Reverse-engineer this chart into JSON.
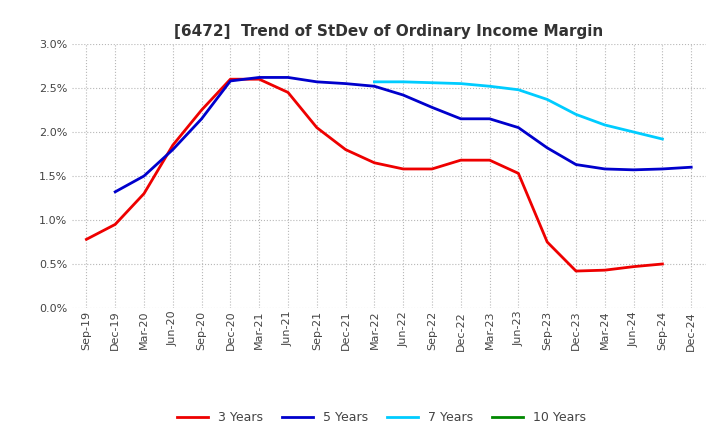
{
  "title": "[6472]  Trend of StDev of Ordinary Income Margin",
  "background_color": "#ffffff",
  "grid_color": "#b0b0b0",
  "xlabels": [
    "Sep-19",
    "Dec-19",
    "Mar-20",
    "Jun-20",
    "Sep-20",
    "Dec-20",
    "Mar-21",
    "Jun-21",
    "Sep-21",
    "Dec-21",
    "Mar-22",
    "Jun-22",
    "Sep-22",
    "Dec-22",
    "Mar-23",
    "Jun-23",
    "Sep-23",
    "Dec-23",
    "Mar-24",
    "Jun-24",
    "Sep-24",
    "Dec-24"
  ],
  "ylim": [
    0.0,
    0.03
  ],
  "yticks": [
    0.0,
    0.005,
    0.01,
    0.015,
    0.02,
    0.025,
    0.03
  ],
  "series_3y_x": [
    0,
    1,
    2,
    3,
    4,
    5,
    6,
    7,
    8,
    9,
    10,
    11,
    12,
    13,
    14,
    15,
    16,
    17,
    18,
    19,
    20
  ],
  "series_3y_y": [
    0.0078,
    0.0095,
    0.013,
    0.0185,
    0.0225,
    0.026,
    0.026,
    0.0245,
    0.0205,
    0.018,
    0.0165,
    0.0158,
    0.0158,
    0.0168,
    0.0168,
    0.0153,
    0.0075,
    0.0042,
    0.0043,
    0.0047,
    0.005
  ],
  "series_3y_color": "#ee0000",
  "series_5y_x": [
    1,
    2,
    3,
    4,
    5,
    6,
    7,
    8,
    9,
    10,
    11,
    12,
    13,
    14,
    15,
    16,
    17,
    18,
    19,
    20,
    21
  ],
  "series_5y_y": [
    0.0132,
    0.015,
    0.018,
    0.0215,
    0.0258,
    0.0262,
    0.0262,
    0.0257,
    0.0255,
    0.0252,
    0.0242,
    0.0228,
    0.0215,
    0.0215,
    0.0205,
    0.0182,
    0.0163,
    0.0158,
    0.0157,
    0.0158,
    0.016
  ],
  "series_5y_color": "#0000cc",
  "series_7y_x": [
    10,
    11,
    12,
    13,
    14,
    15,
    16,
    17,
    18,
    19,
    20
  ],
  "series_7y_y": [
    0.0257,
    0.0257,
    0.0256,
    0.0255,
    0.0252,
    0.0248,
    0.0237,
    0.022,
    0.0208,
    0.02,
    0.0192
  ],
  "series_7y_color": "#00ccff",
  "series_10y_x": [],
  "series_10y_y": [],
  "series_10y_color": "#008800",
  "legend_labels": [
    "3 Years",
    "5 Years",
    "7 Years",
    "10 Years"
  ],
  "legend_colors": [
    "#ee0000",
    "#0000cc",
    "#00ccff",
    "#008800"
  ],
  "title_fontsize": 11,
  "tick_fontsize": 8,
  "legend_fontsize": 9
}
